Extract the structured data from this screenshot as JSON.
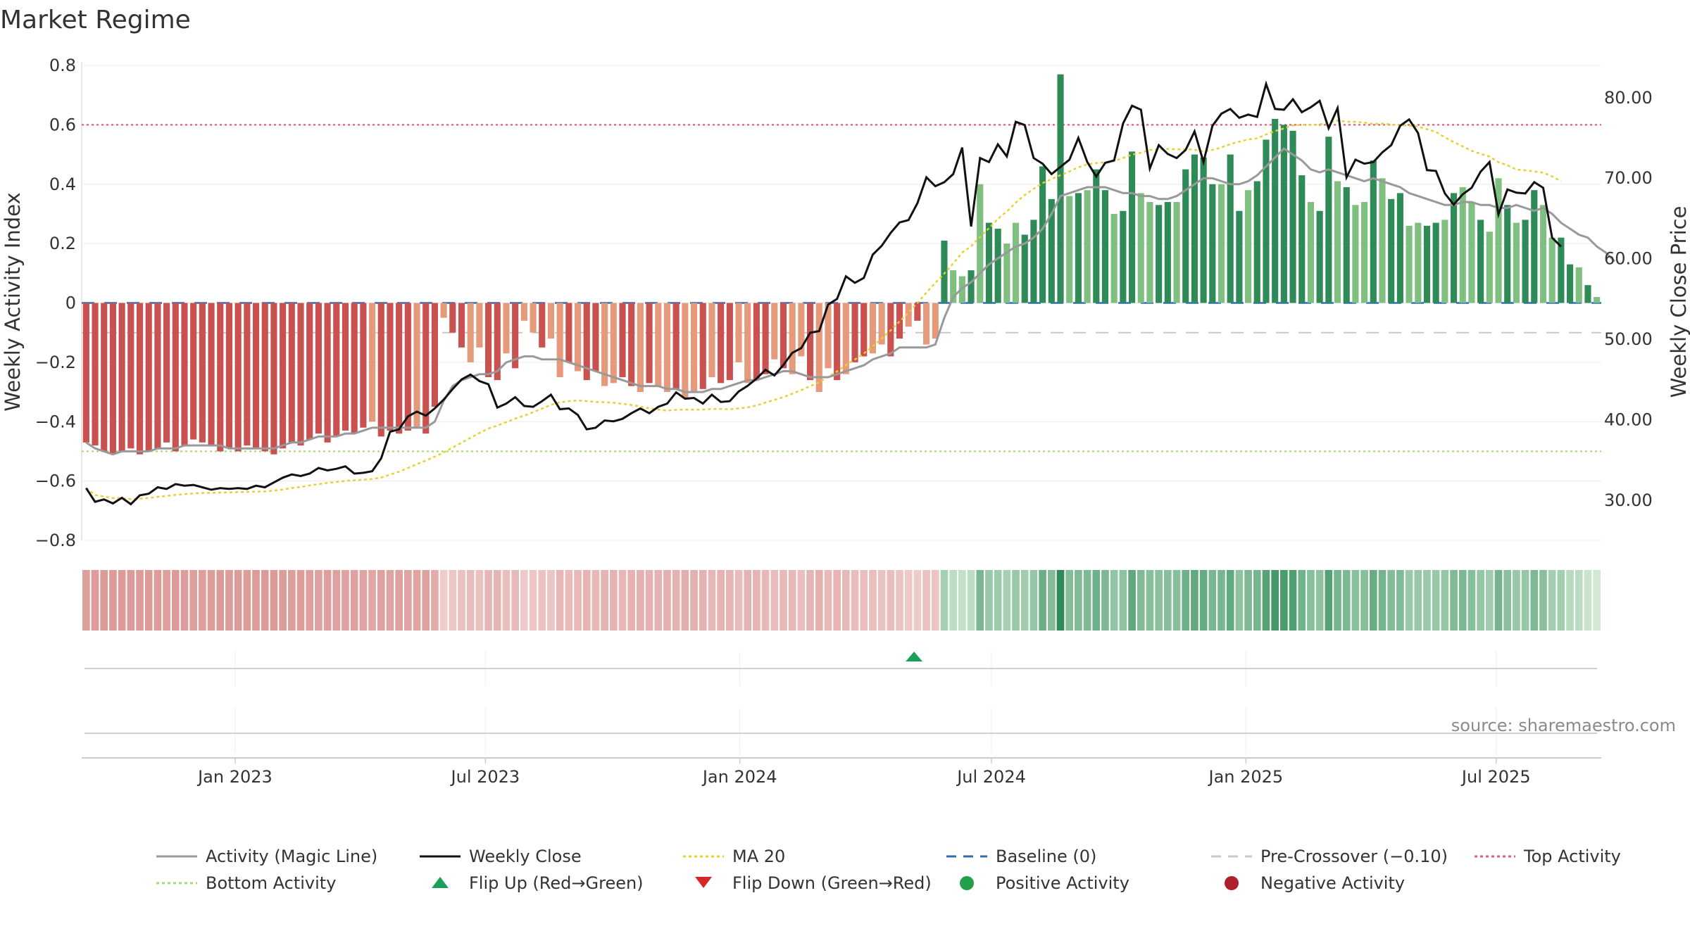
{
  "title": "Market Regime",
  "source_text": "source: sharemaestro.com",
  "colors": {
    "neg_dark": "#c9514f",
    "neg_light": "#e69a7c",
    "pos_dark": "#2e8b57",
    "pos_light": "#7fbf7f",
    "magic_line": "#999999",
    "close_line": "#111111",
    "ma20": "#e8d030",
    "baseline": "#2f6db3",
    "pre_crossover": "#c8c8c8",
    "top_activity": "#e0607a",
    "bottom_activity": "#a8d870",
    "flip_up": "#1aa05a",
    "flip_down": "#d62728",
    "positive": "#22a04a",
    "negative": "#b0202a"
  },
  "legend": [
    {
      "label": "Activity (Magic Line)",
      "symbol": "line-solid-gray"
    },
    {
      "label": "Weekly Close",
      "symbol": "line-solid-black"
    },
    {
      "label": "MA 20",
      "symbol": "line-dotted-yellow"
    },
    {
      "label": "Baseline (0)",
      "symbol": "line-dashed-blue"
    },
    {
      "label": "Pre-Crossover (−0.10)",
      "symbol": "line-dashed-gray"
    },
    {
      "label": "Top Activity",
      "symbol": "line-dotted-pink"
    },
    {
      "label": "Bottom Activity",
      "symbol": "line-dotted-green"
    },
    {
      "label": "Flip Up (Red→Green)",
      "symbol": "triangle-up-green"
    },
    {
      "label": "Flip Down (Green→Red)",
      "symbol": "triangle-down-red"
    },
    {
      "label": "Positive Activity",
      "symbol": "dot-green"
    },
    {
      "label": "Negative Activity",
      "symbol": "dot-red"
    }
  ],
  "chart_data": {
    "type": "bar",
    "title": "Market Regime",
    "frequency": "weekly",
    "x_start": "2022-09-12",
    "x_end": "2025-09-15",
    "x_ticks": [
      "Jan 2023",
      "Jul 2023",
      "Jan 2024",
      "Jul 2024",
      "Jan 2025",
      "Jul 2025"
    ],
    "x_tick_dates": [
      "2023-01-01",
      "2023-07-01",
      "2024-01-01",
      "2024-07-01",
      "2025-01-01",
      "2025-07-01"
    ],
    "ylabel_left": "Weekly Activity Index",
    "ylim_left": [
      -0.8,
      0.8
    ],
    "y_ticks_left": [
      "−0.8",
      "−0.6",
      "−0.4",
      "−0.2",
      "0",
      "0.2",
      "0.4",
      "0.6",
      "0.8"
    ],
    "y_tick_values_left": [
      -0.8,
      -0.6,
      -0.4,
      -0.2,
      0,
      0.2,
      0.4,
      0.6,
      0.8
    ],
    "ylabel_right": "Weekly Close Price",
    "ylim_right": [
      25,
      84
    ],
    "y_ticks_right": [
      "30.00",
      "40.00",
      "50.00",
      "60.00",
      "70.00",
      "80.00"
    ],
    "y_tick_values_right": [
      30,
      40,
      50,
      60,
      70,
      80
    ],
    "reference_lines": [
      {
        "name": "Baseline (0)",
        "value": 0
      },
      {
        "name": "Pre-Crossover (−0.10)",
        "value": -0.1
      },
      {
        "name": "Top Activity",
        "value": 0.6
      },
      {
        "name": "Bottom Activity",
        "value": -0.5
      }
    ],
    "weekly_activity": [
      -0.47,
      -0.48,
      -0.5,
      -0.51,
      -0.5,
      -0.49,
      -0.51,
      -0.5,
      -0.49,
      -0.47,
      -0.5,
      -0.48,
      -0.46,
      -0.47,
      -0.48,
      -0.5,
      -0.49,
      -0.5,
      -0.48,
      -0.49,
      -0.5,
      -0.51,
      -0.49,
      -0.47,
      -0.48,
      -0.46,
      -0.44,
      -0.47,
      -0.45,
      -0.43,
      -0.44,
      -0.42,
      -0.4,
      -0.45,
      -0.43,
      -0.44,
      -0.43,
      -0.42,
      -0.44,
      -0.35,
      -0.05,
      -0.1,
      -0.15,
      -0.2,
      -0.15,
      -0.25,
      -0.26,
      -0.17,
      -0.22,
      -0.06,
      -0.1,
      -0.15,
      -0.12,
      -0.25,
      -0.2,
      -0.23,
      -0.26,
      -0.23,
      -0.28,
      -0.27,
      -0.25,
      -0.28,
      -0.3,
      -0.27,
      -0.28,
      -0.3,
      -0.29,
      -0.32,
      -0.3,
      -0.29,
      -0.25,
      -0.27,
      -0.26,
      -0.2,
      -0.27,
      -0.26,
      -0.24,
      -0.19,
      -0.22,
      -0.24,
      -0.18,
      -0.26,
      -0.3,
      -0.22,
      -0.26,
      -0.24,
      -0.2,
      -0.18,
      -0.17,
      -0.14,
      -0.18,
      -0.12,
      -0.08,
      -0.06,
      -0.14,
      -0.12,
      0.21,
      0.11,
      0.09,
      0.11,
      0.4,
      0.27,
      0.25,
      0.2,
      0.27,
      0.23,
      0.28,
      0.46,
      0.35,
      0.77,
      0.36,
      0.37,
      0.38,
      0.45,
      0.38,
      0.3,
      0.31,
      0.51,
      0.37,
      0.34,
      0.33,
      0.34,
      0.34,
      0.45,
      0.5,
      0.49,
      0.4,
      0.4,
      0.5,
      0.31,
      0.38,
      0.41,
      0.55,
      0.62,
      0.6,
      0.58,
      0.43,
      0.34,
      0.31,
      0.56,
      0.41,
      0.39,
      0.33,
      0.34,
      0.48,
      0.42,
      0.35,
      0.37,
      0.26,
      0.27,
      0.26,
      0.27,
      0.28,
      0.37,
      0.39,
      0.34,
      0.28,
      0.24,
      0.42,
      0.33,
      0.27,
      0.28,
      0.38,
      0.33,
      0.22,
      0.22,
      0.13,
      0.12,
      0.06,
      0.02
    ],
    "magic_line": [
      -0.47,
      -0.49,
      -0.5,
      -0.51,
      -0.5,
      -0.5,
      -0.5,
      -0.5,
      -0.49,
      -0.49,
      -0.49,
      -0.48,
      -0.48,
      -0.48,
      -0.48,
      -0.48,
      -0.49,
      -0.49,
      -0.49,
      -0.49,
      -0.49,
      -0.49,
      -0.48,
      -0.47,
      -0.47,
      -0.46,
      -0.45,
      -0.45,
      -0.45,
      -0.44,
      -0.44,
      -0.43,
      -0.42,
      -0.42,
      -0.42,
      -0.42,
      -0.42,
      -0.42,
      -0.42,
      -0.4,
      -0.33,
      -0.28,
      -0.26,
      -0.25,
      -0.24,
      -0.24,
      -0.23,
      -0.2,
      -0.19,
      -0.18,
      -0.18,
      -0.19,
      -0.19,
      -0.19,
      -0.2,
      -0.21,
      -0.22,
      -0.23,
      -0.24,
      -0.25,
      -0.26,
      -0.27,
      -0.28,
      -0.28,
      -0.28,
      -0.29,
      -0.29,
      -0.3,
      -0.3,
      -0.3,
      -0.29,
      -0.29,
      -0.28,
      -0.27,
      -0.26,
      -0.26,
      -0.25,
      -0.24,
      -0.23,
      -0.23,
      -0.24,
      -0.25,
      -0.25,
      -0.25,
      -0.24,
      -0.23,
      -0.22,
      -0.21,
      -0.19,
      -0.18,
      -0.17,
      -0.15,
      -0.15,
      -0.15,
      -0.15,
      -0.14,
      -0.05,
      0.02,
      0.05,
      0.07,
      0.1,
      0.13,
      0.15,
      0.17,
      0.19,
      0.2,
      0.22,
      0.25,
      0.3,
      0.36,
      0.37,
      0.38,
      0.39,
      0.39,
      0.39,
      0.38,
      0.37,
      0.37,
      0.36,
      0.36,
      0.35,
      0.35,
      0.36,
      0.38,
      0.4,
      0.42,
      0.42,
      0.41,
      0.4,
      0.4,
      0.41,
      0.43,
      0.46,
      0.49,
      0.52,
      0.5,
      0.48,
      0.45,
      0.44,
      0.45,
      0.44,
      0.43,
      0.42,
      0.41,
      0.42,
      0.41,
      0.4,
      0.39,
      0.37,
      0.36,
      0.35,
      0.34,
      0.33,
      0.33,
      0.34,
      0.34,
      0.33,
      0.33,
      0.32,
      0.32,
      0.33,
      0.32,
      0.31,
      0.32,
      0.3,
      0.27,
      0.25,
      0.23,
      0.22,
      0.19,
      0.17,
      0.14
    ],
    "weekly_close": [
      31.5,
      29.8,
      30.1,
      29.6,
      30.3,
      29.5,
      30.6,
      30.8,
      31.6,
      31.4,
      32.0,
      31.8,
      31.9,
      31.6,
      31.3,
      31.5,
      31.4,
      31.5,
      31.4,
      31.8,
      31.6,
      32.2,
      32.8,
      33.2,
      33.0,
      33.3,
      34.0,
      33.7,
      33.9,
      34.2,
      33.3,
      33.4,
      33.6,
      35.2,
      38.5,
      38.8,
      40.4,
      41.0,
      40.5,
      41.4,
      42.5,
      43.8,
      45.0,
      45.6,
      44.8,
      44.4,
      41.5,
      42.0,
      42.8,
      41.7,
      41.6,
      42.3,
      43.1,
      41.3,
      41.4,
      40.6,
      38.8,
      39.0,
      39.9,
      39.8,
      40.1,
      40.8,
      41.4,
      40.8,
      41.6,
      42.0,
      43.4,
      42.6,
      42.7,
      42.0,
      43.1,
      42.2,
      42.3,
      43.5,
      44.2,
      45.1,
      46.2,
      45.5,
      46.8,
      48.3,
      48.9,
      50.8,
      51.0,
      54.3,
      55.0,
      57.8,
      57.0,
      57.6,
      60.5,
      61.6,
      63.2,
      64.5,
      64.8,
      66.9,
      70.1,
      69.0,
      69.5,
      70.5,
      73.8,
      64.0,
      72.5,
      72.0,
      74.2,
      72.7,
      77.0,
      76.6,
      72.5,
      71.8,
      70.5,
      71.4,
      72.3,
      75.0,
      72.0,
      70.2,
      71.9,
      72.2,
      76.8,
      79.0,
      78.5,
      71.2,
      74.1,
      73.0,
      72.5,
      73.5,
      75.8,
      72.0,
      76.5,
      78.0,
      78.6,
      77.5,
      77.9,
      77.6,
      81.7,
      78.6,
      78.5,
      79.8,
      78.2,
      78.8,
      79.6,
      76.2,
      78.7,
      70.1,
      72.3,
      71.8,
      72.0,
      73.2,
      74.1,
      76.5,
      77.3,
      75.6,
      71.0,
      70.9,
      68.1,
      66.7,
      68.0,
      68.8,
      70.8,
      72.0,
      65.5,
      68.6,
      68.2,
      68.1,
      69.5,
      68.8,
      62.6,
      61.5
    ]
  },
  "flip_up_date": "2024-05-06"
}
